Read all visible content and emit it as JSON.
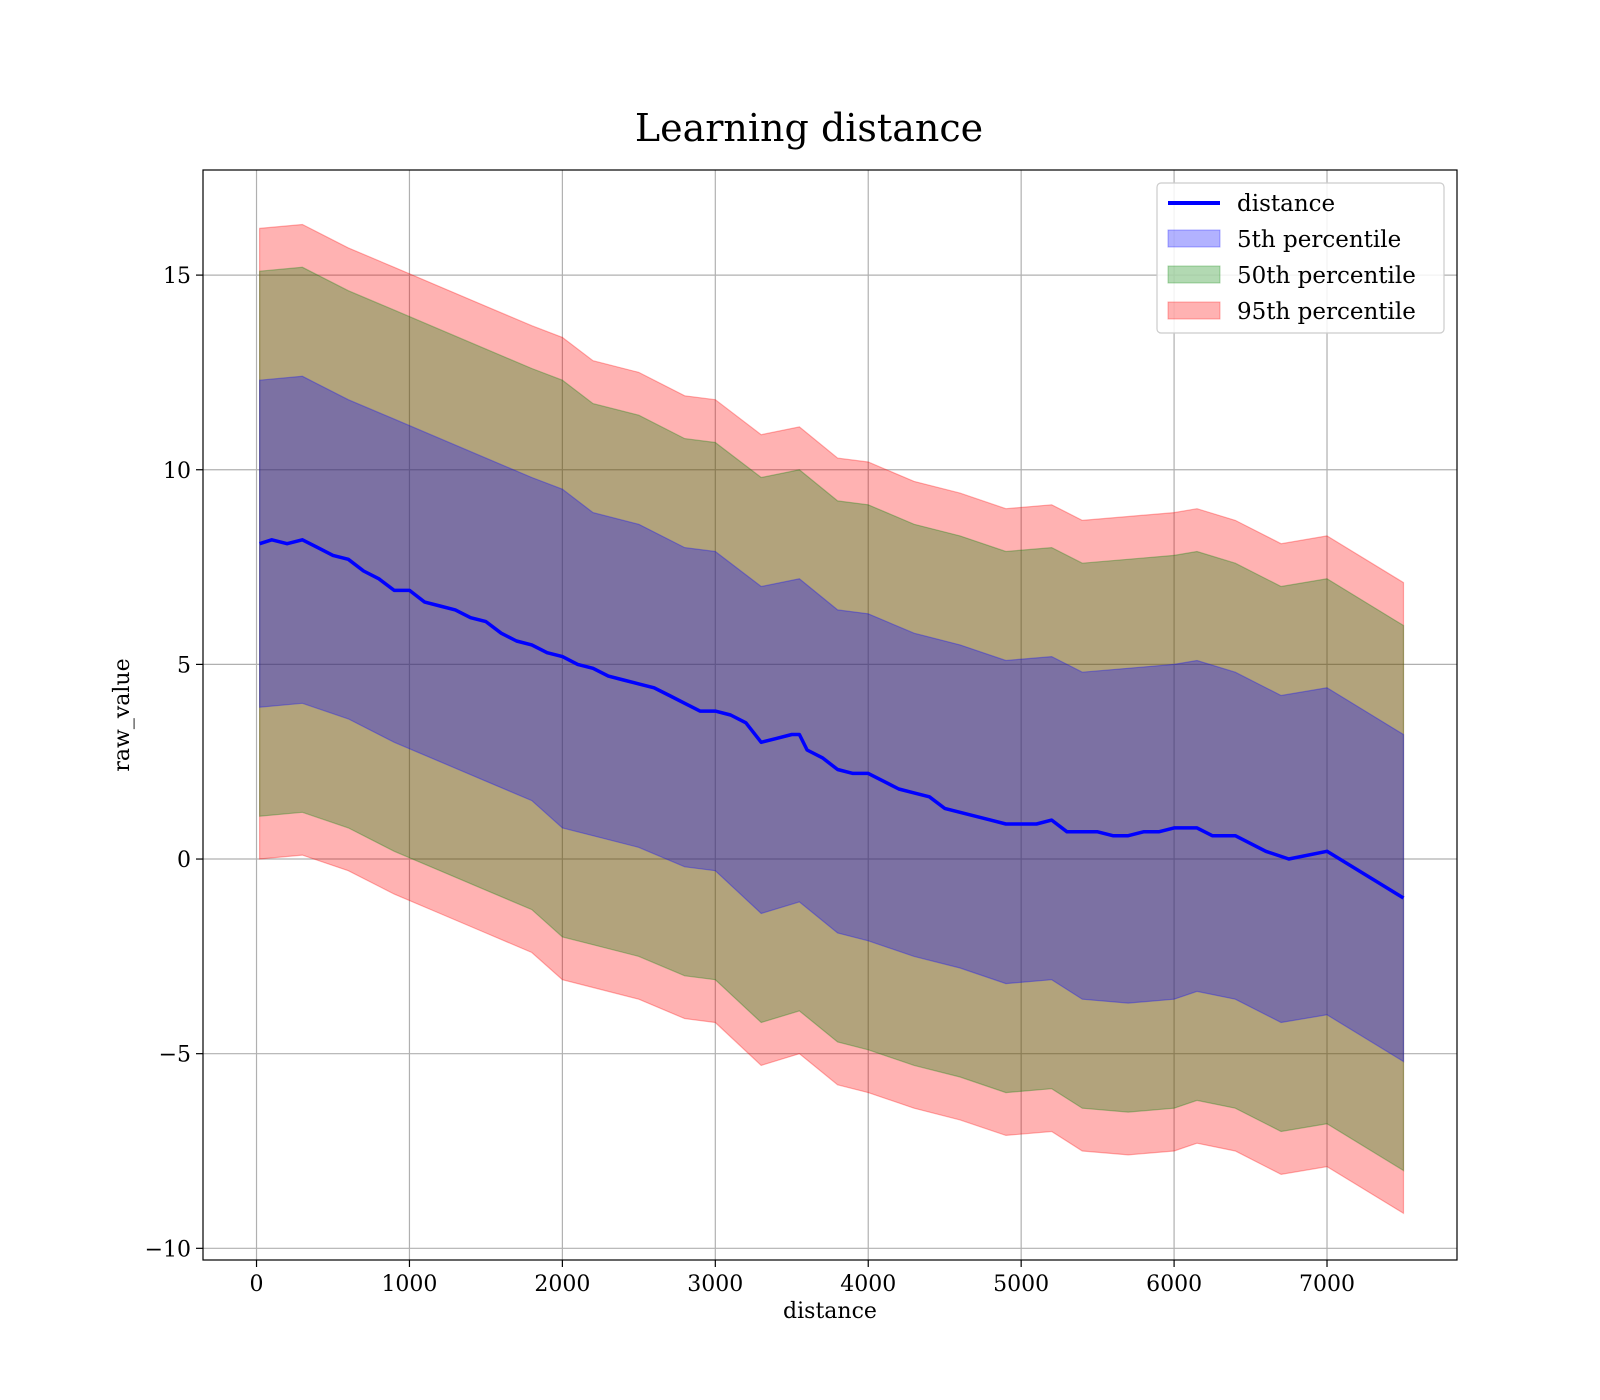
{
  "chart_data": {
    "type": "line",
    "title": "Learning distance",
    "xlabel": "distance",
    "ylabel": "raw_value",
    "xlim": [
      -350,
      7850
    ],
    "ylim": [
      -10.3,
      17.7
    ],
    "xticks": [
      0,
      1000,
      2000,
      3000,
      4000,
      5000,
      6000,
      7000
    ],
    "yticks": [
      -10,
      -5,
      0,
      5,
      10,
      15
    ],
    "ytick_labels": [
      "−10",
      "−5",
      "0",
      "5",
      "10",
      "15"
    ],
    "grid": true,
    "legend_position": "top-right",
    "legend": [
      "distance",
      "5th percentile",
      "50th percentile",
      "95th percentile"
    ],
    "series": [
      {
        "name": "distance",
        "kind": "line",
        "color": "#0000ff",
        "x": [
          20,
          100,
          200,
          300,
          400,
          500,
          600,
          700,
          800,
          900,
          1000,
          1100,
          1200,
          1300,
          1400,
          1500,
          1600,
          1700,
          1800,
          1900,
          2000,
          2100,
          2200,
          2300,
          2400,
          2500,
          2600,
          2700,
          2800,
          2900,
          3000,
          3100,
          3200,
          3300,
          3400,
          3500,
          3550,
          3600,
          3700,
          3800,
          3900,
          4000,
          4100,
          4200,
          4300,
          4400,
          4500,
          4600,
          4700,
          4800,
          4900,
          5000,
          5100,
          5200,
          5300,
          5400,
          5500,
          5600,
          5700,
          5800,
          5900,
          6000,
          6150,
          6250,
          6400,
          6600,
          6750,
          7000,
          7500
        ],
        "y": [
          8.1,
          8.2,
          8.1,
          8.2,
          8.0,
          7.8,
          7.7,
          7.4,
          7.2,
          6.9,
          6.9,
          6.6,
          6.5,
          6.4,
          6.2,
          6.1,
          5.8,
          5.6,
          5.5,
          5.3,
          5.2,
          5.0,
          4.9,
          4.7,
          4.6,
          4.5,
          4.4,
          4.2,
          4.0,
          3.8,
          3.8,
          3.7,
          3.5,
          3.0,
          3.1,
          3.2,
          3.2,
          2.8,
          2.6,
          2.3,
          2.2,
          2.2,
          2.0,
          1.8,
          1.7,
          1.6,
          1.3,
          1.2,
          1.1,
          1.0,
          0.9,
          0.9,
          0.9,
          1.0,
          0.7,
          0.7,
          0.7,
          0.6,
          0.6,
          0.7,
          0.7,
          0.8,
          0.8,
          0.6,
          0.6,
          0.2,
          0.0,
          0.2,
          -1.0
        ]
      },
      {
        "name": "5th percentile",
        "kind": "band",
        "color": "#0000ff",
        "x": [
          20,
          300,
          600,
          900,
          1200,
          1500,
          1800,
          2000,
          2200,
          2500,
          2800,
          3000,
          3300,
          3550,
          3800,
          4000,
          4300,
          4600,
          4900,
          5200,
          5400,
          5700,
          6000,
          6150,
          6400,
          6700,
          7000,
          7500
        ],
        "upper": [
          12.3,
          12.4,
          11.8,
          11.3,
          10.8,
          10.3,
          9.8,
          9.5,
          8.9,
          8.6,
          8.0,
          7.9,
          7.0,
          7.2,
          6.4,
          6.3,
          5.8,
          5.5,
          5.1,
          5.2,
          4.8,
          4.9,
          5.0,
          5.1,
          4.8,
          4.2,
          4.4,
          3.2
        ],
        "lower": [
          3.9,
          4.0,
          3.6,
          3.0,
          2.5,
          2.0,
          1.5,
          0.8,
          0.6,
          0.3,
          -0.2,
          -0.3,
          -1.4,
          -1.1,
          -1.9,
          -2.1,
          -2.5,
          -2.8,
          -3.2,
          -3.1,
          -3.6,
          -3.7,
          -3.6,
          -3.4,
          -3.6,
          -4.2,
          -4.0,
          -5.2
        ]
      },
      {
        "name": "50th percentile",
        "kind": "band",
        "color": "#008000",
        "x": [
          20,
          300,
          600,
          900,
          1200,
          1500,
          1800,
          2000,
          2200,
          2500,
          2800,
          3000,
          3300,
          3550,
          3800,
          4000,
          4300,
          4600,
          4900,
          5200,
          5400,
          5700,
          6000,
          6150,
          6400,
          6700,
          7000,
          7500
        ],
        "upper": [
          15.1,
          15.2,
          14.6,
          14.1,
          13.6,
          13.1,
          12.6,
          12.3,
          11.7,
          11.4,
          10.8,
          10.7,
          9.8,
          10.0,
          9.2,
          9.1,
          8.6,
          8.3,
          7.9,
          8.0,
          7.6,
          7.7,
          7.8,
          7.9,
          7.6,
          7.0,
          7.2,
          6.0
        ],
        "lower": [
          1.1,
          1.2,
          0.8,
          0.2,
          -0.3,
          -0.8,
          -1.3,
          -2.0,
          -2.2,
          -2.5,
          -3.0,
          -3.1,
          -4.2,
          -3.9,
          -4.7,
          -4.9,
          -5.3,
          -5.6,
          -6.0,
          -5.9,
          -6.4,
          -6.5,
          -6.4,
          -6.2,
          -6.4,
          -7.0,
          -6.8,
          -8.0
        ]
      },
      {
        "name": "95th percentile",
        "kind": "band",
        "color": "#ff0000",
        "x": [
          20,
          300,
          600,
          900,
          1200,
          1500,
          1800,
          2000,
          2200,
          2500,
          2800,
          3000,
          3300,
          3550,
          3800,
          4000,
          4300,
          4600,
          4900,
          5200,
          5400,
          5700,
          6000,
          6150,
          6400,
          6700,
          7000,
          7500
        ],
        "upper": [
          16.2,
          16.3,
          15.7,
          15.2,
          14.7,
          14.2,
          13.7,
          13.4,
          12.8,
          12.5,
          11.9,
          11.8,
          10.9,
          11.1,
          10.3,
          10.2,
          9.7,
          9.4,
          9.0,
          9.1,
          8.7,
          8.8,
          8.9,
          9.0,
          8.7,
          8.1,
          8.3,
          7.1
        ],
        "lower": [
          0.0,
          0.1,
          -0.3,
          -0.9,
          -1.4,
          -1.9,
          -2.4,
          -3.1,
          -3.3,
          -3.6,
          -4.1,
          -4.2,
          -5.3,
          -5.0,
          -5.8,
          -6.0,
          -6.4,
          -6.7,
          -7.1,
          -7.0,
          -7.5,
          -7.6,
          -7.5,
          -7.3,
          -7.5,
          -8.1,
          -7.9,
          -9.1
        ]
      }
    ]
  }
}
